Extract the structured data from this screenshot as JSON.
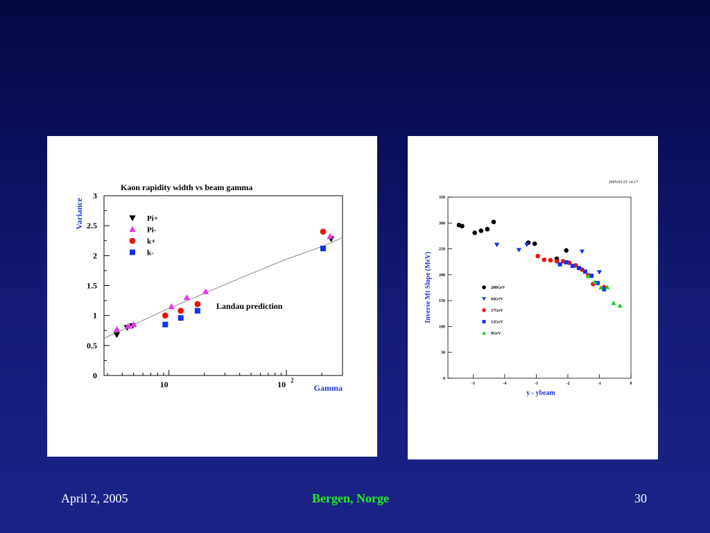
{
  "footer": {
    "date": "April 2, 2005",
    "place": "Bergen, Norge",
    "page": "30"
  },
  "chart_data": [
    {
      "type": "scatter",
      "title": "Kaon rapidity width vs beam gamma",
      "xlabel": "Gamma",
      "ylabel": "Variance",
      "x_scale": "log",
      "xlim": [
        2.8,
        300
      ],
      "ylim": [
        0,
        3
      ],
      "y_ticks": [
        0,
        0.5,
        1,
        1.5,
        2,
        2.5,
        3
      ],
      "y_tick_labels": [
        "0",
        "0.5",
        "1",
        "1.5",
        "2",
        "2.5",
        "3"
      ],
      "x_tick_labels": [
        {
          "x": 10,
          "base": "10",
          "exp": ""
        },
        {
          "x": 100,
          "base": "10",
          "exp": "2"
        }
      ],
      "annotation": "Landau prediction",
      "curve": {
        "color": "#888888",
        "points": [
          [
            2.8,
            0.62
          ],
          [
            4,
            0.76
          ],
          [
            6,
            0.92
          ],
          [
            10,
            1.12
          ],
          [
            20,
            1.37
          ],
          [
            50,
            1.7
          ],
          [
            100,
            1.94
          ],
          [
            200,
            2.15
          ],
          [
            300,
            2.3
          ]
        ]
      },
      "legend_position": "top-left",
      "series": [
        {
          "name": "Pi+",
          "marker": "triangle-down",
          "color": "#000000",
          "points": [
            [
              3.6,
              0.68
            ],
            [
              4.4,
              0.8
            ],
            [
              4.9,
              0.83
            ],
            [
              240,
              2.28
            ]
          ]
        },
        {
          "name": "Pi-",
          "marker": "triangle-up",
          "color": "#ee33ee",
          "points": [
            [
              3.6,
              0.77
            ],
            [
              4.5,
              0.82
            ],
            [
              5.0,
              0.85
            ],
            [
              10.5,
              1.15
            ],
            [
              14.2,
              1.3
            ],
            [
              20.5,
              1.4
            ],
            [
              235,
              2.32
            ]
          ]
        },
        {
          "name": "k+",
          "marker": "circle",
          "color": "#ee1111",
          "points": [
            [
              9.3,
              1.0
            ],
            [
              12.6,
              1.08
            ],
            [
              17.5,
              1.19
            ],
            [
              205,
              2.4
            ]
          ]
        },
        {
          "name": "k-",
          "marker": "square",
          "color": "#1133ee",
          "points": [
            [
              9.3,
              0.85
            ],
            [
              12.6,
              0.96
            ],
            [
              17.5,
              1.08
            ],
            [
              205,
              2.12
            ]
          ]
        }
      ]
    },
    {
      "type": "scatter",
      "stamp": "2005/03/25   14.17",
      "xlabel": "y - ybeam",
      "ylabel": "Inverse Mt Slope (MeV)",
      "xlim": [
        -5.8,
        0
      ],
      "ylim": [
        0,
        350
      ],
      "x_ticks": [
        -5,
        -4,
        -3,
        -2,
        -1,
        0
      ],
      "x_tick_labels": [
        "-5",
        "-4",
        "-3",
        "-2",
        "-1",
        "0"
      ],
      "y_ticks": [
        0,
        50,
        100,
        150,
        200,
        250,
        300,
        350
      ],
      "y_tick_labels": [
        "0",
        "50",
        "100",
        "150",
        "200",
        "250",
        "300",
        "350"
      ],
      "legend_position": "center-left",
      "series": [
        {
          "name": "200GeV",
          "marker": "circle",
          "color": "#000000",
          "points": [
            [
              -5.45,
              296
            ],
            [
              -5.35,
              294
            ],
            [
              -4.95,
              281
            ],
            [
              -4.75,
              285
            ],
            [
              -4.55,
              288
            ],
            [
              -4.35,
              302
            ],
            [
              -3.25,
              262
            ],
            [
              -3.05,
              260
            ],
            [
              -2.35,
              231
            ],
            [
              -2.05,
              247
            ]
          ]
        },
        {
          "name": "64GeV",
          "marker": "triangle-down",
          "color": "#1133ee",
          "points": [
            [
              -4.25,
              258
            ],
            [
              -3.55,
              248
            ],
            [
              -3.3,
              258
            ],
            [
              -1.55,
              245
            ],
            [
              -1.0,
              205
            ]
          ]
        },
        {
          "name": "17GeV",
          "marker": "circle",
          "color": "#ee1111",
          "points": [
            [
              -2.95,
              236
            ],
            [
              -2.75,
              229
            ],
            [
              -2.55,
              228
            ],
            [
              -2.35,
              226
            ],
            [
              -2.15,
              226
            ],
            [
              -1.95,
              223
            ],
            [
              -1.75,
              218
            ],
            [
              -1.55,
              210
            ],
            [
              -1.35,
              199
            ],
            [
              -1.2,
              182
            ],
            [
              -0.85,
              176
            ]
          ]
        },
        {
          "name": "12GeV",
          "marker": "square",
          "color": "#1133ee",
          "points": [
            [
              -2.25,
              220
            ],
            [
              -2.05,
              224
            ],
            [
              -1.85,
              217
            ],
            [
              -1.65,
              213
            ],
            [
              -1.45,
              206
            ],
            [
              -1.25,
              198
            ],
            [
              -1.05,
              184
            ],
            [
              -0.85,
              172
            ]
          ]
        },
        {
          "name": "9GeV",
          "marker": "triangle-up",
          "color": "#22cc22",
          "points": [
            [
              -1.35,
              197
            ],
            [
              -1.15,
              186
            ],
            [
              -0.95,
              175
            ],
            [
              -0.75,
              176
            ],
            [
              -0.55,
              145
            ],
            [
              -0.35,
              140
            ]
          ]
        }
      ]
    }
  ]
}
